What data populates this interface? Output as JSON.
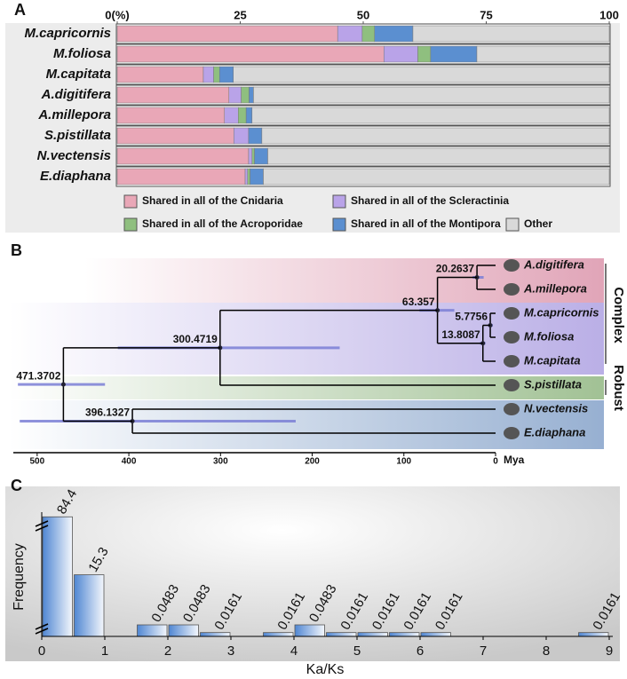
{
  "chart_data": [
    {
      "panel": "A",
      "type": "bar",
      "orientation": "horizontal",
      "stacked": true,
      "categories": [
        "M.capricornis",
        "M.foliosa",
        "M.capitata",
        "A.digitifera",
        "A.millepora",
        "S.pistillata",
        "N.vectensis",
        "E.diaphana"
      ],
      "series": [
        {
          "name": "Shared in all of the Cnidaria",
          "color": "#e9a7b7",
          "values": [
            44.8,
            54.2,
            17.5,
            22.7,
            21.8,
            23.7,
            26.7,
            26.0
          ]
        },
        {
          "name": "Shared in all of the Scleractinia",
          "color": "#b9a3e8",
          "values": [
            5.0,
            6.9,
            2.1,
            2.5,
            2.8,
            3.0,
            0.7,
            0.5
          ]
        },
        {
          "name": "Shared in all of the Acroporidae",
          "color": "#8fbf7f",
          "values": [
            2.5,
            2.6,
            1.2,
            1.6,
            1.6,
            0,
            0.5,
            0.5
          ]
        },
        {
          "name": "Shared in all of the Montipora",
          "color": "#5b8fd0",
          "values": [
            7.8,
            9.4,
            2.8,
            0.9,
            1.2,
            2.7,
            2.7,
            2.7
          ]
        },
        {
          "name": "Other",
          "color": "#d9d9d9",
          "values": [
            39.9,
            26.9,
            76.4,
            72.3,
            72.6,
            70.6,
            69.4,
            70.3
          ]
        }
      ],
      "xlim": [
        0,
        100
      ],
      "xticks": [
        {
          "value": 0,
          "label": "0(%)"
        },
        25,
        50,
        75,
        100
      ]
    },
    {
      "panel": "B",
      "type": "tree",
      "xlim": [
        526,
        0
      ],
      "xticks": [
        500,
        400,
        300,
        200,
        100,
        0
      ],
      "xlabel": "Mya",
      "clade_labels": [
        "Complex",
        "Robust"
      ],
      "tree": {
        "age": 471.3702,
        "hpd": [
          521,
          426
        ],
        "children": [
          {
            "age": 300.4719,
            "hpd": [
              412,
              170
            ],
            "children": [
              {
                "age": 63.357,
                "hpd": [
                  83,
                  45
                ],
                "children": [
                  {
                    "age": 20.2637,
                    "hpd": [
                      25,
                      13
                    ],
                    "children": [
                      {
                        "name": "A.digitifera"
                      },
                      {
                        "name": "A.millepora"
                      }
                    ]
                  },
                  {
                    "age": 13.8087,
                    "hpd": [
                      17,
                      11
                    ],
                    "children": [
                      {
                        "age": 5.7756,
                        "hpd": [
                          8,
                          3
                        ],
                        "children": [
                          {
                            "name": "M.capricornis"
                          },
                          {
                            "name": "M.foliosa"
                          }
                        ]
                      },
                      {
                        "name": "M.capitata"
                      }
                    ]
                  }
                ]
              },
              {
                "name": "S.pistillata"
              }
            ]
          },
          {
            "age": 396.1327,
            "hpd": [
              519,
              218
            ],
            "children": [
              {
                "name": "N.vectensis"
              },
              {
                "name": "E.diaphana"
              }
            ]
          }
        ]
      }
    },
    {
      "panel": "C",
      "type": "histogram",
      "broken_axis": true,
      "bins": [
        0,
        0.5,
        1,
        1.5,
        2,
        2.5,
        3,
        3.5,
        4,
        4.5,
        5,
        5.5,
        6,
        6.5,
        7,
        7.5,
        8,
        8.5,
        9
      ],
      "values": [
        84.4,
        15.3,
        0,
        0.0483,
        0.0483,
        0.0161,
        0,
        0.0161,
        0.0483,
        0.0161,
        0.0161,
        0.0161,
        0.0161,
        0,
        0,
        0,
        0,
        0.0161
      ],
      "xlim": [
        0,
        9
      ],
      "xticks": [
        0,
        1,
        2,
        3,
        4,
        5,
        6,
        7,
        8,
        9
      ],
      "ylim": [
        0,
        90
      ],
      "xlabel": "Ka/Ks",
      "ylabel": "Frequency"
    }
  ]
}
